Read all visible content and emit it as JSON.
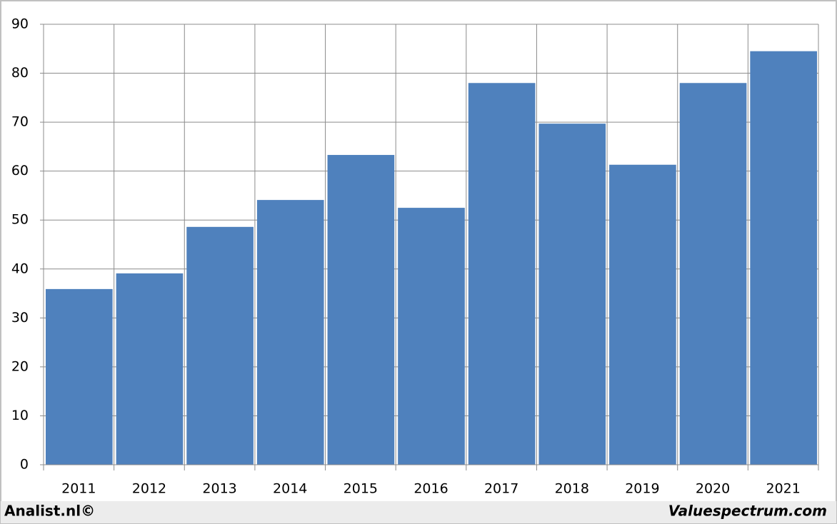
{
  "chart_data": {
    "type": "bar",
    "categories": [
      "2011",
      "2012",
      "2013",
      "2014",
      "2015",
      "2016",
      "2017",
      "2018",
      "2019",
      "2020",
      "2021"
    ],
    "values": [
      35.9,
      39.1,
      48.6,
      54.1,
      63.3,
      52.5,
      78.0,
      69.7,
      61.3,
      78.0,
      84.5
    ],
    "color": "#4f81bd",
    "ylim": [
      0,
      90
    ],
    "yticks": [
      0,
      10,
      20,
      30,
      40,
      50,
      60,
      70,
      80,
      90
    ],
    "grid": true,
    "credits": [
      "Analist.nl©",
      "Valuespectrum.com"
    ]
  }
}
